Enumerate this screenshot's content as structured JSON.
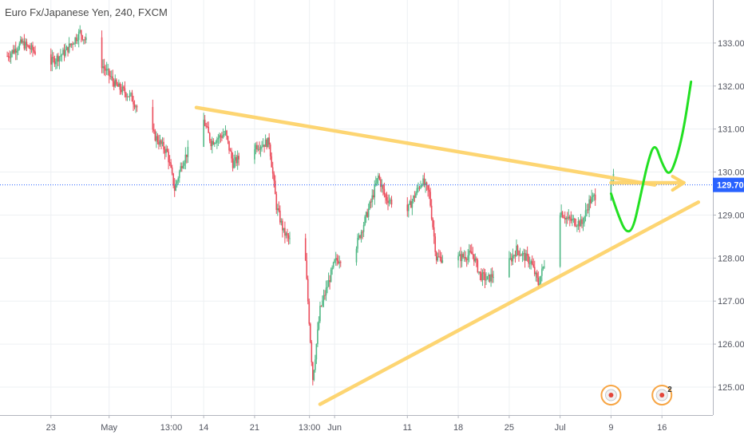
{
  "chart_data": {
    "type": "candlestick",
    "title": "Euro Fx/Japanese Yen, 240, FXCM",
    "xlabel": "",
    "ylabel": "",
    "ylim": [
      124.35,
      134.0
    ],
    "y_ticks": [
      "125.000",
      "126.000",
      "127.000",
      "128.000",
      "129.000",
      "130.000",
      "131.000",
      "132.000",
      "133.000"
    ],
    "x_ticks": [
      {
        "label": "23",
        "date": "2018-04-23"
      },
      {
        "label": "May",
        "date": "2018-05-01"
      },
      {
        "label": "13:00",
        "date": "2018-05-09 13:00"
      },
      {
        "label": "14",
        "date": "2018-05-14"
      },
      {
        "label": "21",
        "date": "2018-05-21"
      },
      {
        "label": "13:00",
        "date": "2018-05-28 13:00"
      },
      {
        "label": "Jun",
        "date": "2018-06-01"
      },
      {
        "label": "11",
        "date": "2018-06-11"
      },
      {
        "label": "18",
        "date": "2018-06-18"
      },
      {
        "label": "25",
        "date": "2018-06-25"
      },
      {
        "label": "Jul",
        "date": "2018-07-02"
      },
      {
        "label": "9",
        "date": "2018-07-09"
      },
      {
        "label": "16",
        "date": "2018-07-16"
      }
    ],
    "current_price": {
      "label": "129.701",
      "value": 129.701
    },
    "colors": {
      "up": "#53b987",
      "down": "#eb4d5c",
      "resistance": "#fdd36a",
      "support": "#fdd36a",
      "projection": "#22e022",
      "price_line": "#2962ff",
      "price_label_bg": "#2962ff"
    },
    "anchors": [
      [
        "2018-04-17",
        132.7
      ],
      [
        "2018-04-19",
        133.0
      ],
      [
        "2018-04-23",
        132.55
      ],
      [
        "2018-04-25",
        132.8
      ],
      [
        "2018-04-27",
        133.25
      ],
      [
        "2018-04-30",
        132.5
      ],
      [
        "2018-05-02",
        132.0
      ],
      [
        "2018-05-04",
        131.75
      ],
      [
        "2018-05-07",
        130.9
      ],
      [
        "2018-05-09",
        130.45
      ],
      [
        "2018-05-10",
        129.6
      ],
      [
        "2018-05-11",
        130.2
      ],
      [
        "2018-05-14",
        131.2
      ],
      [
        "2018-05-15",
        130.7
      ],
      [
        "2018-05-17",
        130.9
      ],
      [
        "2018-05-18",
        130.2
      ],
      [
        "2018-05-21",
        130.6
      ],
      [
        "2018-05-23",
        130.7
      ],
      [
        "2018-05-24",
        129.2
      ],
      [
        "2018-05-25",
        128.6
      ],
      [
        "2018-05-28",
        127.9
      ],
      [
        "2018-05-29",
        125.2
      ],
      [
        "2018-05-30",
        126.8
      ],
      [
        "2018-06-01",
        127.9
      ],
      [
        "2018-06-04",
        128.3
      ],
      [
        "2018-06-06",
        129.3
      ],
      [
        "2018-06-07",
        129.9
      ],
      [
        "2018-06-08",
        129.4
      ],
      [
        "2018-06-11",
        129.1
      ],
      [
        "2018-06-13",
        129.8
      ],
      [
        "2018-06-14",
        129.5
      ],
      [
        "2018-06-15",
        128.0
      ],
      [
        "2018-06-18",
        128.0
      ],
      [
        "2018-06-20",
        128.1
      ],
      [
        "2018-06-21",
        127.6
      ],
      [
        "2018-06-22",
        127.5
      ],
      [
        "2018-06-25",
        127.9
      ],
      [
        "2018-06-26",
        128.2
      ],
      [
        "2018-06-28",
        127.9
      ],
      [
        "2018-06-29",
        127.4
      ],
      [
        "2018-07-02",
        129.1
      ],
      [
        "2018-07-03",
        128.9
      ],
      [
        "2018-07-05",
        128.8
      ],
      [
        "2018-07-06",
        129.3
      ],
      [
        "2018-07-09",
        129.85
      ]
    ],
    "annotations": [
      {
        "name": "resistance-trendline",
        "type": "line",
        "points": [
          [
            "2018-05-13",
            131.5
          ],
          [
            "2018-07-15",
            129.7
          ]
        ]
      },
      {
        "name": "resistance-arrow",
        "type": "line",
        "points": [
          [
            "2018-07-09",
            129.75
          ],
          [
            "2018-07-19",
            129.75
          ]
        ]
      },
      {
        "name": "support-trendline",
        "type": "line",
        "points": [
          [
            "2018-05-30",
            124.6
          ],
          [
            "2018-07-21",
            129.3
          ]
        ]
      },
      {
        "name": "projection-path",
        "type": "line",
        "points": [
          [
            "2018-07-09",
            129.5
          ],
          [
            "2018-07-10",
            129.0
          ],
          [
            "2018-07-11",
            128.6
          ],
          [
            "2018-07-12",
            128.65
          ],
          [
            "2018-07-13",
            129.4
          ],
          [
            "2018-07-14",
            130.2
          ],
          [
            "2018-07-15",
            130.7
          ],
          [
            "2018-07-16",
            130.2
          ],
          [
            "2018-07-17",
            129.9
          ],
          [
            "2018-07-18",
            130.3
          ],
          [
            "2018-07-19",
            131.0
          ],
          [
            "2018-07-20",
            132.1
          ]
        ]
      }
    ],
    "event_markers": [
      {
        "name": "event-marker",
        "date": "2018-07-09",
        "label": ""
      },
      {
        "name": "event-marker",
        "date": "2018-07-16",
        "label": "2"
      }
    ]
  }
}
